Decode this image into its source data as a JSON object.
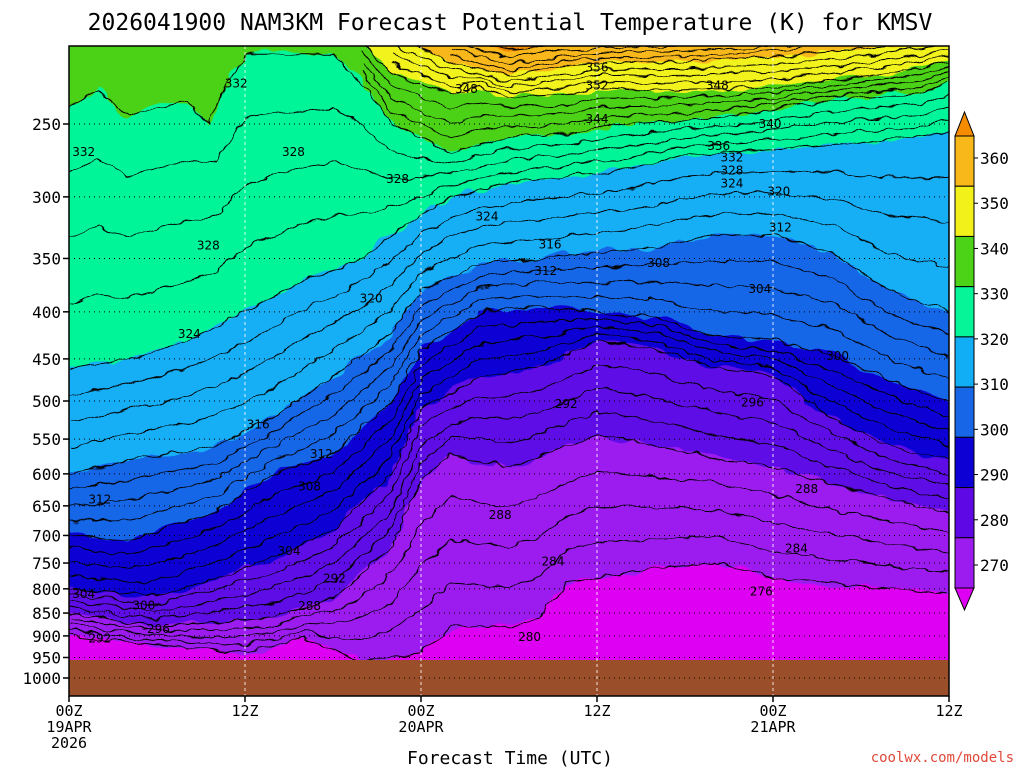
{
  "chart_data": {
    "type": "heatmap",
    "title": "2026041900 NAM3KM Forecast Potential Temperature (K) for KMSV",
    "xlabel": "Forecast Time (UTC)",
    "ylabel": "",
    "x_ticks": [
      {
        "hours": 0,
        "lines": [
          "00Z",
          "19APR",
          "2026"
        ]
      },
      {
        "hours": 12,
        "lines": [
          "12Z"
        ]
      },
      {
        "hours": 24,
        "lines": [
          "00Z",
          "20APR"
        ]
      },
      {
        "hours": 36,
        "lines": [
          "12Z"
        ]
      },
      {
        "hours": 48,
        "lines": [
          "00Z",
          "21APR"
        ]
      },
      {
        "hours": 60,
        "lines": [
          "12Z"
        ]
      }
    ],
    "xlim": [
      0,
      60
    ],
    "y_ticks": [
      250,
      300,
      350,
      400,
      450,
      500,
      550,
      600,
      650,
      700,
      750,
      800,
      850,
      900,
      950,
      1000
    ],
    "ylim_hPa": [
      200,
      1040
    ],
    "colorbar": {
      "levels": [
        270,
        280,
        290,
        300,
        310,
        320,
        330,
        340,
        350,
        360
      ],
      "labels": [
        "360",
        "350",
        "340",
        "330",
        "320",
        "310",
        "300",
        "290",
        "280",
        "270"
      ],
      "colors": [
        "#de00f2",
        "#9c1cf0",
        "#5f08e6",
        "#0c00d4",
        "#1766e8",
        "#12aef5",
        "#06f599",
        "#4cd216",
        "#f2f21a",
        "#f8b81a",
        "#f58c00"
      ]
    },
    "contour_interval_K": 4,
    "contour_labels": [
      {
        "text": "332",
        "hours": 11.4,
        "hPa": 226
      },
      {
        "text": "332",
        "hours": 1.0,
        "hPa": 268
      },
      {
        "text": "328",
        "hours": 15.3,
        "hPa": 268
      },
      {
        "text": "328",
        "hours": 22.4,
        "hPa": 287
      },
      {
        "text": "328",
        "hours": 9.5,
        "hPa": 339
      },
      {
        "text": "324",
        "hours": 8.2,
        "hPa": 423
      },
      {
        "text": "320",
        "hours": 20.6,
        "hPa": 387
      },
      {
        "text": "324",
        "hours": 28.5,
        "hPa": 315
      },
      {
        "text": "316",
        "hours": 32.8,
        "hPa": 338
      },
      {
        "text": "312",
        "hours": 32.5,
        "hPa": 361
      },
      {
        "text": "308",
        "hours": 40.2,
        "hPa": 354
      },
      {
        "text": "304",
        "hours": 47.1,
        "hPa": 378
      },
      {
        "text": "312",
        "hours": 48.5,
        "hPa": 324
      },
      {
        "text": "320",
        "hours": 48.4,
        "hPa": 296
      },
      {
        "text": "324",
        "hours": 45.2,
        "hPa": 290
      },
      {
        "text": "328",
        "hours": 45.2,
        "hPa": 281
      },
      {
        "text": "332",
        "hours": 45.2,
        "hPa": 272
      },
      {
        "text": "336",
        "hours": 44.3,
        "hPa": 264
      },
      {
        "text": "340",
        "hours": 47.8,
        "hPa": 250
      },
      {
        "text": "344",
        "hours": 36.0,
        "hPa": 247
      },
      {
        "text": "348",
        "hours": 27.1,
        "hPa": 229
      },
      {
        "text": "348",
        "hours": 44.2,
        "hPa": 227
      },
      {
        "text": "352",
        "hours": 36.0,
        "hPa": 227
      },
      {
        "text": "356",
        "hours": 36.0,
        "hPa": 217
      },
      {
        "text": "316",
        "hours": 12.9,
        "hPa": 530
      },
      {
        "text": "312",
        "hours": 17.2,
        "hPa": 571
      },
      {
        "text": "312",
        "hours": 2.1,
        "hPa": 640
      },
      {
        "text": "308",
        "hours": 16.4,
        "hPa": 619
      },
      {
        "text": "304",
        "hours": 1.0,
        "hPa": 810
      },
      {
        "text": "304",
        "hours": 15.0,
        "hPa": 728
      },
      {
        "text": "300",
        "hours": 5.1,
        "hPa": 834
      },
      {
        "text": "300",
        "hours": 52.4,
        "hPa": 447
      },
      {
        "text": "296",
        "hours": 6.1,
        "hPa": 885
      },
      {
        "text": "296",
        "hours": 46.6,
        "hPa": 502
      },
      {
        "text": "292",
        "hours": 2.1,
        "hPa": 906
      },
      {
        "text": "292",
        "hours": 18.1,
        "hPa": 780
      },
      {
        "text": "292",
        "hours": 33.9,
        "hPa": 504
      },
      {
        "text": "288",
        "hours": 16.4,
        "hPa": 835
      },
      {
        "text": "288",
        "hours": 29.4,
        "hPa": 665
      },
      {
        "text": "288",
        "hours": 50.3,
        "hPa": 623
      },
      {
        "text": "284",
        "hours": 33.0,
        "hPa": 747
      },
      {
        "text": "284",
        "hours": 49.6,
        "hPa": 723
      },
      {
        "text": "280",
        "hours": 31.4,
        "hPa": 902
      },
      {
        "text": "276",
        "hours": 47.2,
        "hPa": 805
      }
    ],
    "ground_color": "#9a4f2a"
  },
  "watermark": "coolwx.com/models"
}
